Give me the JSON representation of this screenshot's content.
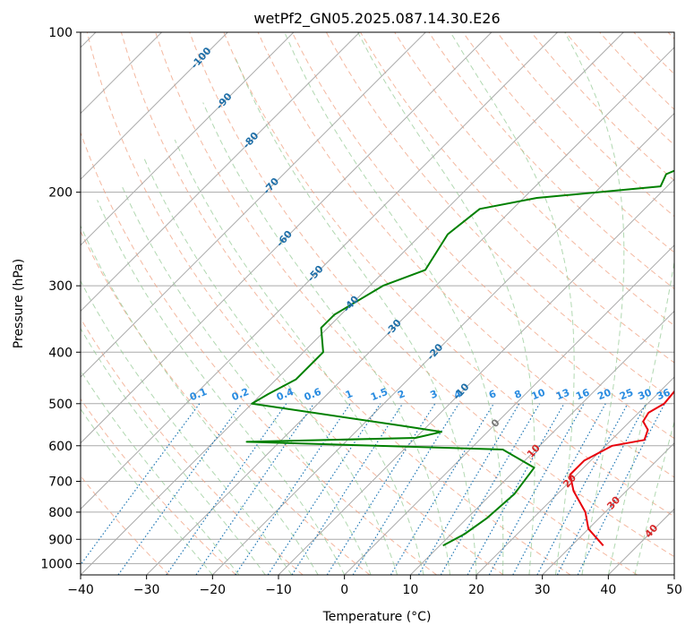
{
  "chart_data": {
    "type": "line",
    "subtype": "skew-T log-P diagram",
    "title": "wetPf2_GN05.2025.087.14.30.E26",
    "xlabel": "Temperature (°C)",
    "ylabel": "Pressure (hPa)",
    "xlim": [
      -40,
      50
    ],
    "ylim": [
      1050,
      100
    ],
    "y_scale": "log",
    "x_ticks": [
      "−40",
      "−30",
      "−20",
      "−10",
      "0",
      "10",
      "20",
      "30",
      "40",
      "50"
    ],
    "y_ticks": [
      "100",
      "200",
      "300",
      "400",
      "500",
      "600",
      "700",
      "800",
      "900",
      "1000"
    ],
    "grid": true,
    "series": [
      {
        "color": "#e8000b",
        "points": [
          [
            34.8,
            925
          ],
          [
            30,
            860
          ],
          [
            27,
            800
          ],
          [
            22,
            730
          ],
          [
            19,
            680
          ],
          [
            19,
            640
          ],
          [
            21,
            600
          ],
          [
            25,
            585
          ],
          [
            24,
            560
          ],
          [
            22,
            540
          ],
          [
            21.5,
            520
          ],
          [
            22.5,
            500
          ],
          [
            22,
            460
          ],
          [
            20,
            420
          ],
          [
            17.5,
            390
          ],
          [
            15.5,
            350
          ],
          [
            13,
            300
          ],
          [
            10.5,
            270
          ],
          [
            10,
            240
          ],
          [
            9,
            205
          ],
          [
            7.5,
            160
          ],
          [
            5,
            130
          ],
          [
            3,
            110
          ],
          [
            2,
            100
          ]
        ]
      },
      {
        "color": "#008000",
        "points": [
          [
            10.5,
            925
          ],
          [
            12,
            880
          ],
          [
            13,
            820
          ],
          [
            13.5,
            740
          ],
          [
            12.5,
            660
          ],
          [
            5,
            610
          ],
          [
            -35,
            590
          ],
          [
            -10,
            580
          ],
          [
            -7,
            565
          ],
          [
            -14,
            550
          ],
          [
            -40,
            500
          ],
          [
            -39,
            480
          ],
          [
            -37,
            450
          ],
          [
            -37,
            400
          ],
          [
            -41,
            360
          ],
          [
            -41,
            340
          ],
          [
            -38,
            300
          ],
          [
            -34,
            280
          ],
          [
            -36,
            240
          ],
          [
            -35,
            215
          ],
          [
            -28,
            205
          ],
          [
            -11,
            195
          ],
          [
            -12,
            185
          ],
          [
            -5,
            160
          ],
          [
            -2,
            140
          ],
          [
            -3,
            125
          ],
          [
            0,
            110
          ],
          [
            1,
            100
          ]
        ]
      }
    ],
    "isotherms": [
      -100,
      -90,
      -80,
      -70,
      -60,
      -50,
      -40,
      -30,
      -20,
      -10,
      0,
      10,
      20,
      30,
      40,
      50
    ],
    "mixing_ratio_labels": [
      "0.1",
      "0.2",
      "0.4",
      "0.6",
      "1",
      "1.5",
      "2",
      "3",
      "4",
      "6",
      "8",
      "10",
      "13",
      "16",
      "20",
      "25",
      "30",
      "36"
    ],
    "isotherm_labels_blue": [
      "-100",
      "-90",
      "-80",
      "-70",
      "-60",
      "-50",
      "-40",
      "-30",
      "-20",
      "-10"
    ],
    "isotherm_labels_gray": [
      "0"
    ],
    "isotherm_labels_red": [
      "10",
      "20",
      "30",
      "40"
    ],
    "colors": {
      "temperature": "#e8000b",
      "dewpoint": "#008000",
      "dry_adiabat": "#f0a080",
      "moist_adiabat": "#90c890",
      "mixing_ratio": "#1f77b4",
      "mixing_label": "#2a8ce0",
      "isotherm_label": "#1f6fa8",
      "warm_label": "#d62728",
      "grid": "#aaaaaa"
    }
  }
}
